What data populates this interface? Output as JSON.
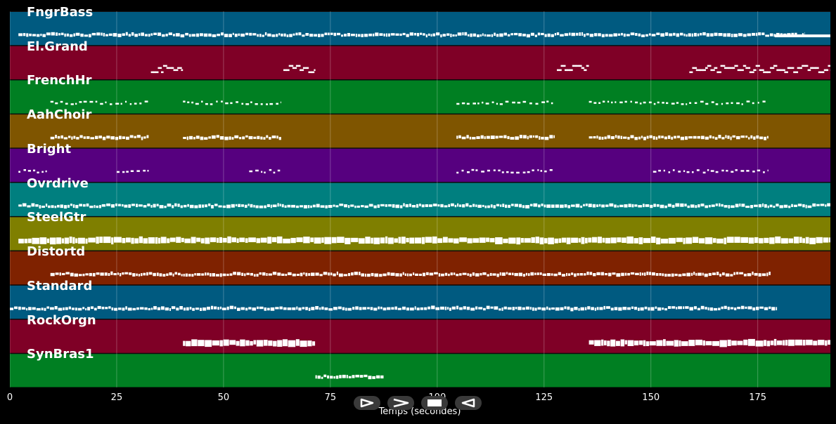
{
  "chart_data": {
    "type": "piano-roll",
    "xlabel": "Temps (secondes)",
    "xlim": [
      0,
      192
    ],
    "xticks": [
      0,
      25,
      50,
      75,
      100,
      125,
      150,
      175
    ],
    "xtick_labels": [
      "0",
      "25",
      "50",
      "75",
      "100",
      "125",
      "150",
      "175"
    ],
    "grid": true,
    "tracks": [
      {
        "name": "FngrBass",
        "color": "#005a80",
        "segments": [
          [
            2,
            186,
            "dense"
          ],
          [
            179,
            192,
            "sustain"
          ]
        ]
      },
      {
        "name": "El.Grand",
        "color": "#7f0026",
        "segments": [
          [
            33,
            40.5,
            "chord"
          ],
          [
            64,
            71.5,
            "chord"
          ],
          [
            128,
            135.5,
            "chord"
          ],
          [
            159,
            192,
            "chord"
          ]
        ]
      },
      {
        "name": "FrenchHr",
        "color": "#007f22",
        "segments": [
          [
            9.5,
            32.5,
            "sparse"
          ],
          [
            40.5,
            63.5,
            "sparse"
          ],
          [
            104.5,
            127.5,
            "sparse"
          ],
          [
            135.5,
            177.5,
            "sparse"
          ]
        ]
      },
      {
        "name": "AahChoir",
        "color": "#7f5500",
        "segments": [
          [
            9.5,
            32.5,
            "dense"
          ],
          [
            40.5,
            63.5,
            "dense"
          ],
          [
            104.5,
            127.5,
            "dense"
          ],
          [
            135.5,
            177.5,
            "dense"
          ]
        ]
      },
      {
        "name": "Bright",
        "color": "#56007f",
        "segments": [
          [
            2,
            9,
            "sparse"
          ],
          [
            25,
            32.5,
            "sparse"
          ],
          [
            56,
            63.5,
            "sparse"
          ],
          [
            104.5,
            127.5,
            "sparse"
          ],
          [
            150.5,
            177.5,
            "sparse"
          ]
        ]
      },
      {
        "name": "Ovrdrive",
        "color": "#007f7f",
        "segments": [
          [
            2,
            192,
            "dense"
          ]
        ]
      },
      {
        "name": "SteelGtr",
        "color": "#7f7f00",
        "segments": [
          [
            2,
            192,
            "block"
          ]
        ]
      },
      {
        "name": "Distortd",
        "color": "#7f2200",
        "segments": [
          [
            9.5,
            178,
            "dense"
          ]
        ]
      },
      {
        "name": "Standard",
        "color": "#005a80",
        "segments": [
          [
            0,
            179.5,
            "dense"
          ]
        ]
      },
      {
        "name": "RockOrgn",
        "color": "#7f0026",
        "segments": [
          [
            40.5,
            71.5,
            "block"
          ],
          [
            135.5,
            192,
            "block"
          ]
        ]
      },
      {
        "name": "SynBras1",
        "color": "#007f22",
        "segments": [
          [
            71.5,
            87.5,
            "dense"
          ]
        ]
      }
    ]
  },
  "controls": [
    {
      "name": "play-button",
      "icon": "play-icon"
    },
    {
      "name": "fast-forward-button",
      "icon": "fast-forward-icon"
    },
    {
      "name": "stop-button",
      "icon": "stop-icon"
    },
    {
      "name": "rewind-button",
      "icon": "rewind-icon"
    }
  ]
}
